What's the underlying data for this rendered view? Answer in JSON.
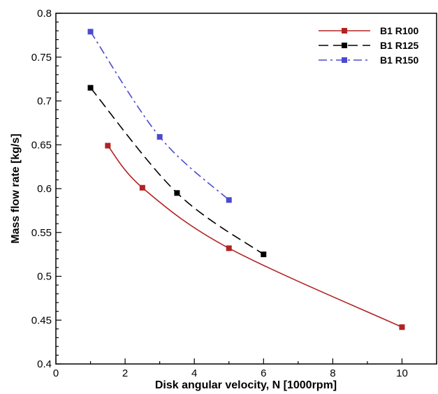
{
  "chart_data": {
    "type": "line",
    "title": "",
    "xlabel": "Disk angular velocity, N [1000rpm]",
    "ylabel": "Mass flow rate [kg/s]",
    "xlim": [
      0,
      11
    ],
    "ylim": [
      0.4,
      0.8
    ],
    "x_ticks": [
      0,
      2,
      4,
      6,
      8,
      10
    ],
    "x_tick_labels": [
      "0",
      "2",
      "4",
      "6",
      "8",
      "10"
    ],
    "y_ticks": [
      0.4,
      0.45,
      0.5,
      0.55,
      0.6,
      0.65,
      0.7,
      0.75,
      0.8
    ],
    "y_tick_labels": [
      "0.4",
      "0.45",
      "0.5",
      "0.55",
      "0.6",
      "0.65",
      "0.7",
      "0.75",
      "0.8"
    ],
    "grid": false,
    "legend_position": "top-right",
    "series": [
      {
        "name": "B1 R100",
        "color": "#b22222",
        "line_style": "solid",
        "marker": "square",
        "x": [
          1.5,
          2.5,
          5,
          10
        ],
        "y": [
          0.649,
          0.601,
          0.532,
          0.442
        ]
      },
      {
        "name": "B1 R125",
        "color": "#000000",
        "line_style": "dashed",
        "marker": "square",
        "x": [
          1,
          3.5,
          6
        ],
        "y": [
          0.715,
          0.595,
          0.525
        ]
      },
      {
        "name": "B1 R150",
        "color": "#4a4ad0",
        "line_style": "dash-dot",
        "marker": "square",
        "x": [
          1,
          3,
          5
        ],
        "y": [
          0.779,
          0.659,
          0.587
        ]
      }
    ]
  }
}
